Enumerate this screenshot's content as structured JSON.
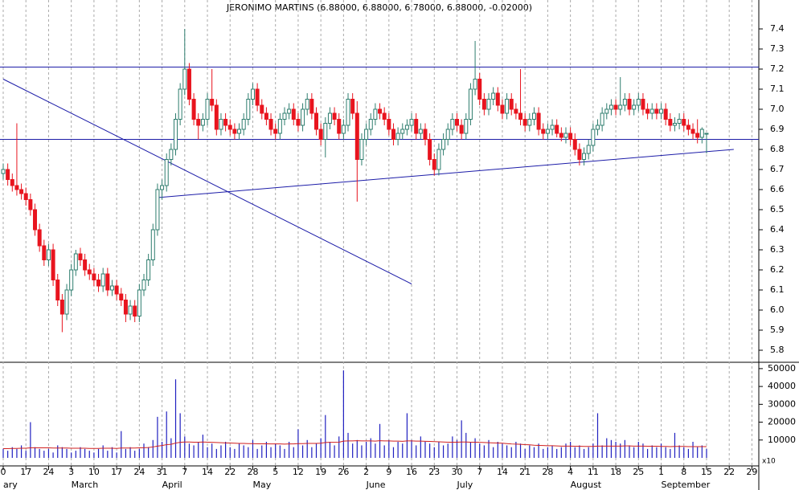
{
  "chart_data": {
    "type": "candlestick",
    "title": "JERONIMO MARTINS (6.88000, 6.88000, 6.78000, 6.88000, -0.02000)",
    "weeks": [
      "0",
      "17",
      "24",
      "3",
      "10",
      "17",
      "24",
      "31",
      "7",
      "14",
      "22",
      "28",
      "5",
      "12",
      "19",
      "26",
      "2",
      "9",
      "16",
      "23",
      "30",
      "7",
      "14",
      "21",
      "28",
      "4",
      "11",
      "18",
      "25",
      "1",
      "8",
      "15",
      "22",
      "29"
    ],
    "months": [
      "ary",
      null,
      null,
      "March",
      null,
      null,
      null,
      "April",
      null,
      null,
      null,
      "May",
      null,
      null,
      null,
      null,
      "June",
      null,
      null,
      null,
      "July",
      null,
      null,
      null,
      null,
      "August",
      null,
      null,
      null,
      "September",
      null,
      null,
      null,
      null
    ],
    "ylim": [
      5.744,
      7.544
    ],
    "yticks": [
      5.8,
      5.9,
      {
        "value": 6.0,
        "label": "6.0"
      },
      6.1,
      6.2,
      6.3,
      6.4,
      6.5,
      6.6,
      6.7,
      6.8,
      6.9,
      {
        "value": 7.0,
        "label": "7.0"
      },
      7.1,
      7.2,
      7.3,
      7.4
    ],
    "up_color": "#2e7d6e",
    "down_color": "#e8141e",
    "line_color": "#1c1ca8",
    "candles": [
      [
        6.68,
        6.73,
        6.65,
        6.7
      ],
      [
        6.7,
        6.73,
        6.62,
        6.65
      ],
      [
        6.65,
        6.68,
        6.59,
        6.62
      ],
      [
        6.62,
        6.93,
        6.57,
        6.6
      ],
      [
        6.6,
        6.63,
        6.55,
        6.58
      ],
      [
        6.58,
        6.61,
        6.52,
        6.55
      ],
      [
        6.55,
        6.58,
        6.47,
        6.5
      ],
      [
        6.5,
        6.53,
        6.37,
        6.4
      ],
      [
        6.4,
        6.43,
        6.29,
        6.32
      ],
      [
        6.32,
        6.35,
        6.22,
        6.25
      ],
      [
        6.25,
        6.33,
        6.22,
        6.3
      ],
      [
        6.3,
        6.33,
        6.12,
        6.15
      ],
      [
        6.15,
        6.18,
        6.02,
        6.05
      ],
      [
        6.05,
        6.08,
        5.89,
        5.98
      ],
      [
        5.98,
        6.13,
        5.95,
        6.1
      ],
      [
        6.1,
        6.23,
        6.07,
        6.2
      ],
      [
        6.2,
        6.3,
        6.17,
        6.28
      ],
      [
        6.28,
        6.31,
        6.22,
        6.25
      ],
      [
        6.25,
        6.28,
        6.17,
        6.2
      ],
      [
        6.2,
        6.23,
        6.15,
        6.18
      ],
      [
        6.18,
        6.21,
        6.12,
        6.15
      ],
      [
        6.15,
        6.18,
        6.09,
        6.12
      ],
      [
        6.12,
        6.21,
        6.09,
        6.18
      ],
      [
        6.18,
        6.21,
        6.07,
        6.1
      ],
      [
        6.1,
        6.15,
        6.07,
        6.12
      ],
      [
        6.12,
        6.15,
        6.05,
        6.08
      ],
      [
        6.08,
        6.11,
        6.02,
        6.05
      ],
      [
        6.05,
        6.08,
        5.94,
        5.98
      ],
      [
        5.98,
        6.05,
        5.95,
        6.02
      ],
      [
        6.02,
        6.05,
        5.94,
        5.97
      ],
      [
        5.97,
        6.13,
        5.94,
        6.1
      ],
      [
        6.1,
        6.18,
        6.07,
        6.15
      ],
      [
        6.15,
        6.28,
        6.12,
        6.25
      ],
      [
        6.25,
        6.43,
        6.22,
        6.4
      ],
      [
        6.4,
        6.63,
        6.37,
        6.6
      ],
      [
        6.6,
        6.65,
        6.55,
        6.62
      ],
      [
        6.62,
        6.78,
        6.59,
        6.75
      ],
      [
        6.75,
        6.83,
        6.72,
        6.8
      ],
      [
        6.8,
        6.98,
        6.77,
        6.95
      ],
      [
        6.95,
        7.13,
        6.92,
        7.1
      ],
      [
        7.1,
        7.4,
        7.07,
        7.2
      ],
      [
        7.2,
        7.23,
        7.02,
        7.05
      ],
      [
        7.05,
        7.08,
        6.92,
        6.95
      ],
      [
        6.95,
        6.98,
        6.85,
        6.92
      ],
      [
        6.92,
        6.98,
        6.89,
        6.95
      ],
      [
        6.95,
        7.08,
        6.92,
        7.05
      ],
      [
        7.05,
        7.2,
        6.99,
        7.02
      ],
      [
        7.02,
        7.05,
        6.87,
        6.9
      ],
      [
        6.9,
        6.98,
        6.87,
        6.95
      ],
      [
        6.95,
        6.98,
        6.89,
        6.92
      ],
      [
        6.92,
        6.95,
        6.87,
        6.9
      ],
      [
        6.9,
        6.93,
        6.85,
        6.88
      ],
      [
        6.88,
        6.93,
        6.85,
        6.9
      ],
      [
        6.9,
        6.98,
        6.87,
        6.95
      ],
      [
        6.95,
        7.08,
        6.92,
        7.05
      ],
      [
        7.05,
        7.13,
        7.02,
        7.1
      ],
      [
        7.1,
        7.13,
        6.99,
        7.02
      ],
      [
        7.02,
        7.05,
        6.95,
        6.98
      ],
      [
        6.98,
        7.01,
        6.92,
        6.95
      ],
      [
        6.95,
        6.98,
        6.87,
        6.9
      ],
      [
        6.9,
        6.93,
        6.85,
        6.88
      ],
      [
        6.88,
        6.98,
        6.85,
        6.95
      ],
      [
        6.95,
        7.01,
        6.92,
        6.98
      ],
      [
        6.98,
        7.03,
        6.95,
        7.0
      ],
      [
        7.0,
        7.03,
        6.92,
        6.95
      ],
      [
        6.95,
        6.98,
        6.89,
        6.92
      ],
      [
        6.92,
        7.03,
        6.89,
        7.0
      ],
      [
        7.0,
        7.08,
        6.97,
        7.05
      ],
      [
        7.05,
        7.08,
        6.95,
        6.98
      ],
      [
        6.98,
        7.01,
        6.87,
        6.9
      ],
      [
        6.9,
        6.93,
        6.82,
        6.85
      ],
      [
        6.85,
        6.96,
        6.76,
        6.93
      ],
      [
        6.93,
        7.01,
        6.9,
        6.98
      ],
      [
        6.98,
        7.01,
        6.92,
        6.95
      ],
      [
        6.95,
        6.98,
        6.85,
        6.88
      ],
      [
        6.88,
        6.95,
        6.85,
        6.92
      ],
      [
        6.92,
        7.08,
        6.89,
        7.05
      ],
      [
        7.05,
        7.08,
        6.95,
        6.98
      ],
      [
        6.98,
        7.04,
        6.54,
        6.75
      ],
      [
        6.75,
        6.88,
        6.72,
        6.85
      ],
      [
        6.85,
        6.93,
        6.82,
        6.9
      ],
      [
        6.9,
        6.98,
        6.87,
        6.95
      ],
      [
        6.95,
        7.03,
        6.92,
        7.0
      ],
      [
        7.0,
        7.03,
        6.95,
        6.98
      ],
      [
        6.98,
        7.01,
        6.92,
        6.95
      ],
      [
        6.95,
        6.98,
        6.87,
        6.9
      ],
      [
        6.9,
        6.93,
        6.82,
        6.85
      ],
      [
        6.85,
        6.91,
        6.82,
        6.88
      ],
      [
        6.88,
        6.93,
        6.85,
        6.9
      ],
      [
        6.9,
        6.95,
        6.87,
        6.92
      ],
      [
        6.92,
        6.98,
        6.89,
        6.95
      ],
      [
        6.95,
        6.98,
        6.85,
        6.88
      ],
      [
        6.88,
        6.93,
        6.85,
        6.9
      ],
      [
        6.9,
        6.93,
        6.82,
        6.85
      ],
      [
        6.85,
        6.88,
        6.72,
        6.75
      ],
      [
        6.75,
        6.78,
        6.67,
        6.7
      ],
      [
        6.7,
        6.83,
        6.67,
        6.8
      ],
      [
        6.8,
        6.88,
        6.77,
        6.85
      ],
      [
        6.85,
        6.93,
        6.82,
        6.9
      ],
      [
        6.9,
        6.98,
        6.87,
        6.95
      ],
      [
        6.95,
        6.98,
        6.89,
        6.92
      ],
      [
        6.92,
        6.95,
        6.85,
        6.88
      ],
      [
        6.88,
        6.98,
        6.85,
        6.95
      ],
      [
        6.95,
        7.13,
        6.92,
        7.1
      ],
      [
        7.1,
        7.34,
        7.07,
        7.15
      ],
      [
        7.15,
        7.18,
        7.02,
        7.05
      ],
      [
        7.05,
        7.08,
        6.97,
        7.0
      ],
      [
        7.0,
        7.08,
        6.97,
        7.05
      ],
      [
        7.05,
        7.11,
        7.02,
        7.08
      ],
      [
        7.08,
        7.11,
        6.99,
        7.02
      ],
      [
        7.02,
        7.05,
        6.95,
        6.98
      ],
      [
        6.98,
        7.08,
        6.95,
        7.05
      ],
      [
        7.05,
        7.08,
        6.97,
        7.0
      ],
      [
        7.0,
        7.03,
        6.95,
        6.98
      ],
      [
        6.98,
        7.2,
        6.92,
        6.95
      ],
      [
        6.95,
        6.98,
        6.89,
        6.92
      ],
      [
        6.92,
        6.98,
        6.89,
        6.95
      ],
      [
        6.95,
        7.01,
        6.92,
        6.98
      ],
      [
        6.98,
        7.01,
        6.87,
        6.9
      ],
      [
        6.9,
        6.93,
        6.85,
        6.88
      ],
      [
        6.88,
        6.93,
        6.85,
        6.9
      ],
      [
        6.9,
        6.95,
        6.87,
        6.92
      ],
      [
        6.92,
        6.95,
        6.86,
        6.88
      ],
      [
        6.88,
        6.91,
        6.84,
        6.86
      ],
      [
        6.86,
        6.91,
        6.83,
        6.88
      ],
      [
        6.88,
        6.91,
        6.82,
        6.85
      ],
      [
        6.85,
        6.88,
        6.77,
        6.8
      ],
      [
        6.8,
        6.83,
        6.72,
        6.75
      ],
      [
        6.75,
        6.81,
        6.72,
        6.78
      ],
      [
        6.78,
        6.85,
        6.75,
        6.82
      ],
      [
        6.82,
        6.93,
        6.79,
        6.9
      ],
      [
        6.9,
        6.95,
        6.87,
        6.92
      ],
      [
        6.92,
        7.01,
        6.89,
        6.98
      ],
      [
        6.98,
        7.03,
        6.95,
        7.0
      ],
      [
        7.0,
        7.05,
        6.97,
        7.02
      ],
      [
        7.02,
        7.05,
        6.97,
        7.0
      ],
      [
        7.0,
        7.16,
        6.97,
        7.02
      ],
      [
        7.02,
        7.08,
        6.99,
        7.05
      ],
      [
        7.05,
        7.08,
        6.97,
        7.0
      ],
      [
        7.0,
        7.05,
        6.97,
        7.02
      ],
      [
        7.02,
        7.08,
        6.99,
        7.05
      ],
      [
        7.05,
        7.08,
        6.97,
        7.0
      ],
      [
        7.0,
        7.03,
        6.95,
        6.98
      ],
      [
        6.98,
        7.03,
        6.95,
        7.0
      ],
      [
        7.0,
        7.03,
        6.95,
        6.98
      ],
      [
        6.98,
        7.03,
        6.95,
        7.0
      ],
      [
        7.0,
        7.03,
        6.92,
        6.95
      ],
      [
        6.95,
        6.98,
        6.89,
        6.92
      ],
      [
        6.92,
        6.96,
        6.89,
        6.93
      ],
      [
        6.93,
        6.98,
        6.9,
        6.95
      ],
      [
        6.95,
        6.98,
        6.89,
        6.92
      ],
      [
        6.92,
        6.95,
        6.87,
        6.9
      ],
      [
        6.9,
        6.93,
        6.85,
        6.88
      ],
      [
        6.88,
        6.95,
        6.83,
        6.86
      ],
      [
        6.86,
        6.91,
        6.83,
        6.9
      ],
      [
        6.88,
        6.88,
        6.78,
        6.88
      ]
    ],
    "hlines": [
      7.21,
      6.85
    ],
    "trendlines": [
      {
        "from": [
          0,
          7.15
        ],
        "to": [
          90,
          6.13
        ]
      },
      {
        "from": [
          34,
          6.56
        ],
        "to": [
          161,
          6.8
        ]
      }
    ],
    "volume": {
      "color": "#2020c0",
      "ma_color": "#d02020",
      "unit_label": "x10",
      "ylim": [
        0,
        54000
      ],
      "yticks": [
        10000,
        20000,
        30000,
        40000,
        50000
      ],
      "values": [
        5000,
        4000,
        6000,
        5000,
        7000,
        4000,
        20000,
        6000,
        5000,
        4000,
        5000,
        3000,
        7000,
        6000,
        5000,
        3000,
        4000,
        6000,
        5000,
        4000,
        3000,
        5000,
        7000,
        4000,
        6000,
        3000,
        15000,
        5000,
        6000,
        4000,
        5000,
        8000,
        6000,
        10000,
        23000,
        9000,
        26000,
        11000,
        44000,
        25000,
        12000,
        8000,
        7000,
        9000,
        13000,
        6000,
        8000,
        5000,
        7000,
        9000,
        6000,
        5000,
        8000,
        7000,
        6000,
        10000,
        5000,
        7000,
        9000,
        6000,
        8000,
        7000,
        5000,
        9000,
        6000,
        16000,
        7000,
        10000,
        6000,
        8000,
        11000,
        24000,
        9000,
        7000,
        12000,
        49000,
        14000,
        8000,
        10000,
        7000,
        9000,
        11000,
        8000,
        19000,
        7000,
        10000,
        6000,
        9000,
        8000,
        25000,
        10000,
        7000,
        12000,
        9000,
        8000,
        6000,
        9000,
        7000,
        8000,
        12000,
        10000,
        21000,
        14000,
        9000,
        11000,
        8000,
        7000,
        10000,
        6000,
        9000,
        8000,
        7000,
        6000,
        9000,
        8000,
        5000,
        7000,
        6000,
        8000,
        5000,
        6000,
        7000,
        5000,
        6000,
        8000,
        9000,
        6000,
        7000,
        5000,
        6000,
        8000,
        25000,
        7000,
        11000,
        10000,
        9000,
        8000,
        10000,
        7000,
        6000,
        9000,
        8000,
        5000,
        7000,
        6000,
        8000,
        6000,
        5000,
        14000,
        7000,
        6000,
        5000,
        9000,
        6000,
        7000,
        5000
      ],
      "ma": [
        5200,
        5200,
        5300,
        5300,
        5400,
        5400,
        5600,
        5600,
        5600,
        5600,
        5600,
        5500,
        5500,
        5500,
        5500,
        5400,
        5400,
        5400,
        5400,
        5300,
        5300,
        5300,
        5400,
        5400,
        5400,
        5300,
        5500,
        5500,
        5500,
        5500,
        5600,
        5700,
        5800,
        6100,
        6600,
        6900,
        7400,
        7600,
        8300,
        8700,
        8900,
        8900,
        8800,
        8800,
        8900,
        8800,
        8700,
        8600,
        8500,
        8400,
        8300,
        8200,
        8100,
        8100,
        8000,
        8000,
        7900,
        7900,
        7900,
        7800,
        7800,
        7800,
        7700,
        7800,
        7800,
        8000,
        8000,
        8100,
        8100,
        8100,
        8200,
        8600,
        8700,
        8700,
        8800,
        9400,
        9500,
        9500,
        9600,
        9500,
        9500,
        9500,
        9400,
        9600,
        9500,
        9500,
        9400,
        9400,
        9300,
        9500,
        9500,
        9400,
        9400,
        9300,
        9200,
        9100,
        9000,
        8900,
        8800,
        8800,
        8800,
        8900,
        8900,
        8800,
        8800,
        8700,
        8600,
        8500,
        8400,
        8300,
        8200,
        8000,
        7800,
        7700,
        7600,
        7400,
        7300,
        7100,
        7000,
        6900,
        6800,
        6800,
        6700,
        6600,
        6600,
        6600,
        6500,
        6500,
        6400,
        6400,
        6400,
        6600,
        6600,
        6600,
        6600,
        6600,
        6600,
        6700,
        6700,
        6600,
        6600,
        6600,
        6500,
        6500,
        6500,
        6400,
        6400,
        6300,
        6400,
        6400,
        6400,
        6300,
        6300,
        6300,
        6300,
        6300
      ]
    }
  }
}
